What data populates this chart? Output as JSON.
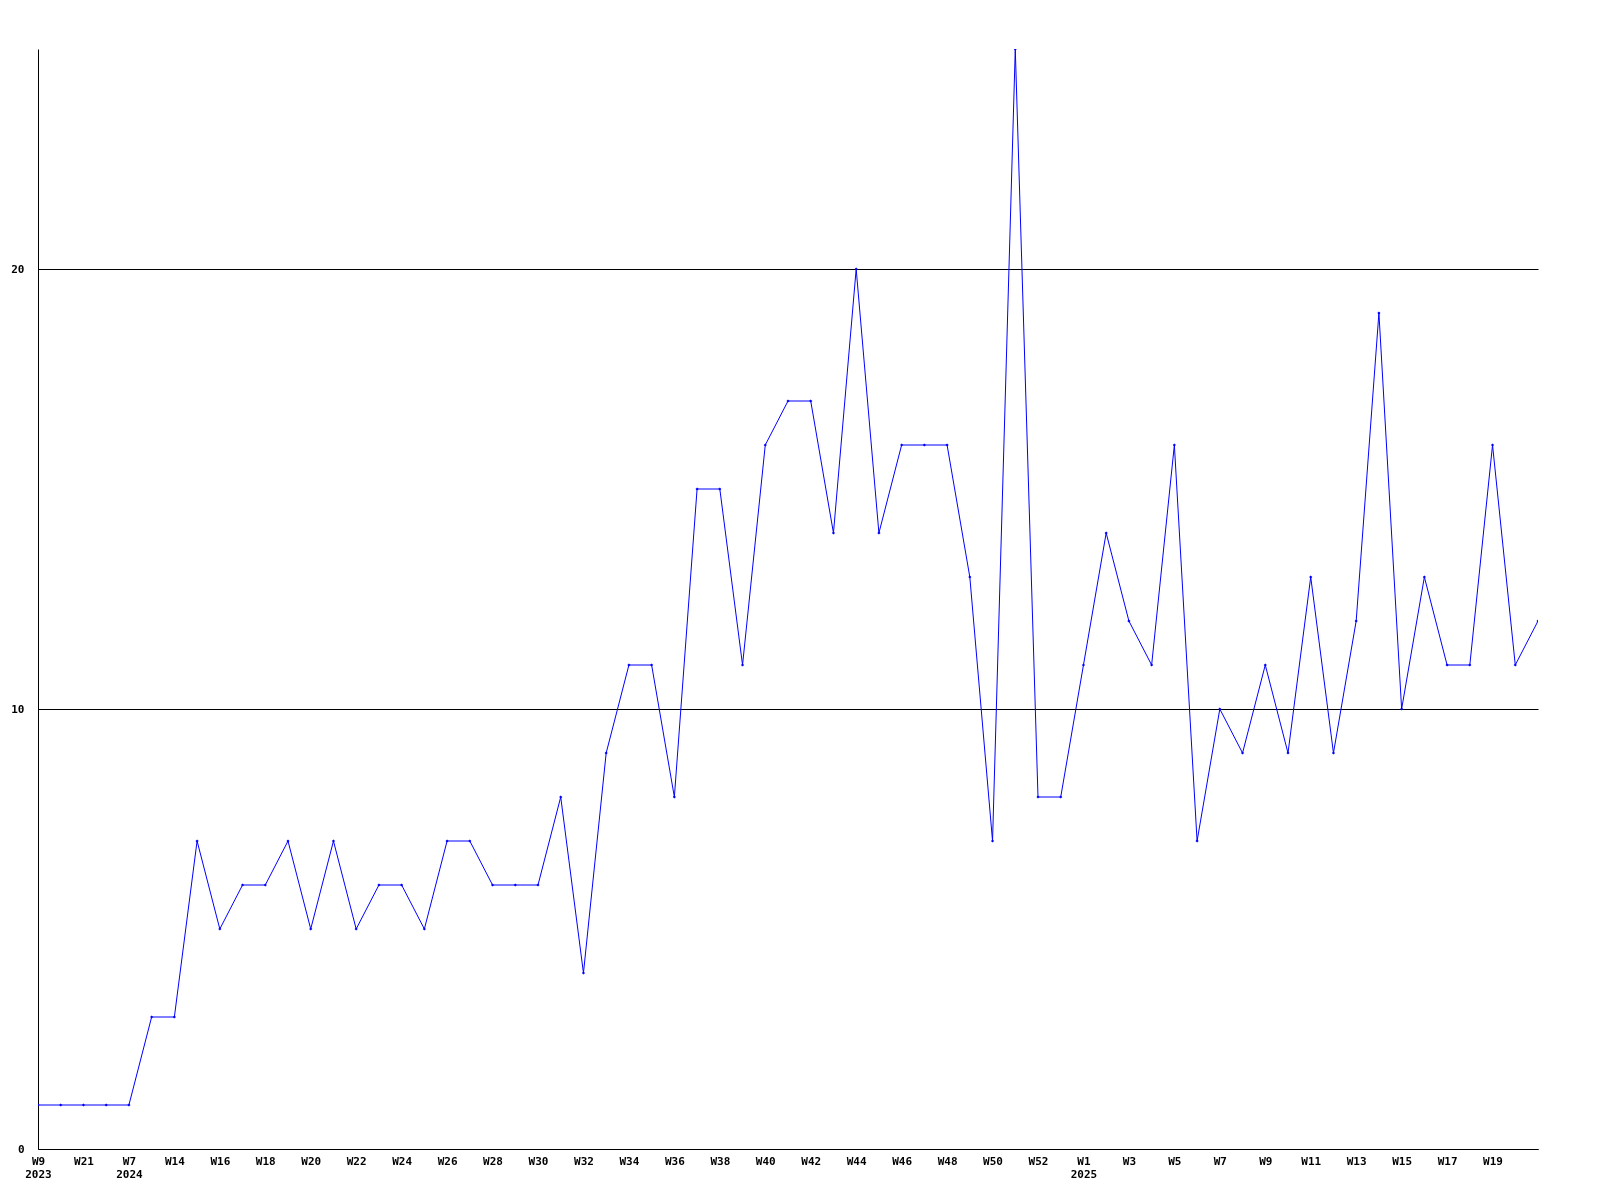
{
  "chart_data": {
    "type": "line",
    "categories": [
      "W9\n2023",
      null,
      "W21",
      null,
      "W7\n2024",
      null,
      "W14",
      null,
      "W16",
      null,
      "W18",
      null,
      "W20",
      null,
      "W22",
      null,
      "W24",
      null,
      "W26",
      null,
      "W28",
      null,
      "W30",
      null,
      "W32",
      null,
      "W34",
      null,
      "W36",
      null,
      "W38",
      null,
      "W40",
      null,
      "W42",
      null,
      "W44",
      null,
      "W46",
      null,
      "W48",
      null,
      "W50",
      null,
      "W52",
      null,
      "W1\n2025",
      null,
      "W3",
      null,
      "W5",
      null,
      "W7",
      null,
      "W9",
      null,
      "W11",
      null,
      "W13",
      null,
      "W15",
      null,
      "W17",
      null,
      "W19",
      null,
      null
    ],
    "series": [
      {
        "color": "#0000ff",
        "values": [
          1,
          1,
          1,
          1,
          1,
          3,
          3,
          7,
          5,
          6,
          6,
          7,
          5,
          7,
          5,
          6,
          6,
          5,
          7,
          7,
          6,
          6,
          6,
          8,
          4,
          9,
          11,
          11,
          8,
          15,
          15,
          11,
          16,
          17,
          17,
          14,
          20,
          14,
          16,
          16,
          16,
          13,
          7,
          25,
          8,
          8,
          11,
          14,
          12,
          11,
          16,
          7,
          10,
          9,
          11,
          9,
          13,
          9,
          12,
          19,
          10,
          13,
          11,
          11,
          16,
          11,
          12
        ]
      }
    ],
    "ylim": [
      0,
      25
    ],
    "yticks": [
      0,
      10,
      20
    ],
    "grid": "y",
    "marker": "diamond",
    "line_style": "solid"
  }
}
